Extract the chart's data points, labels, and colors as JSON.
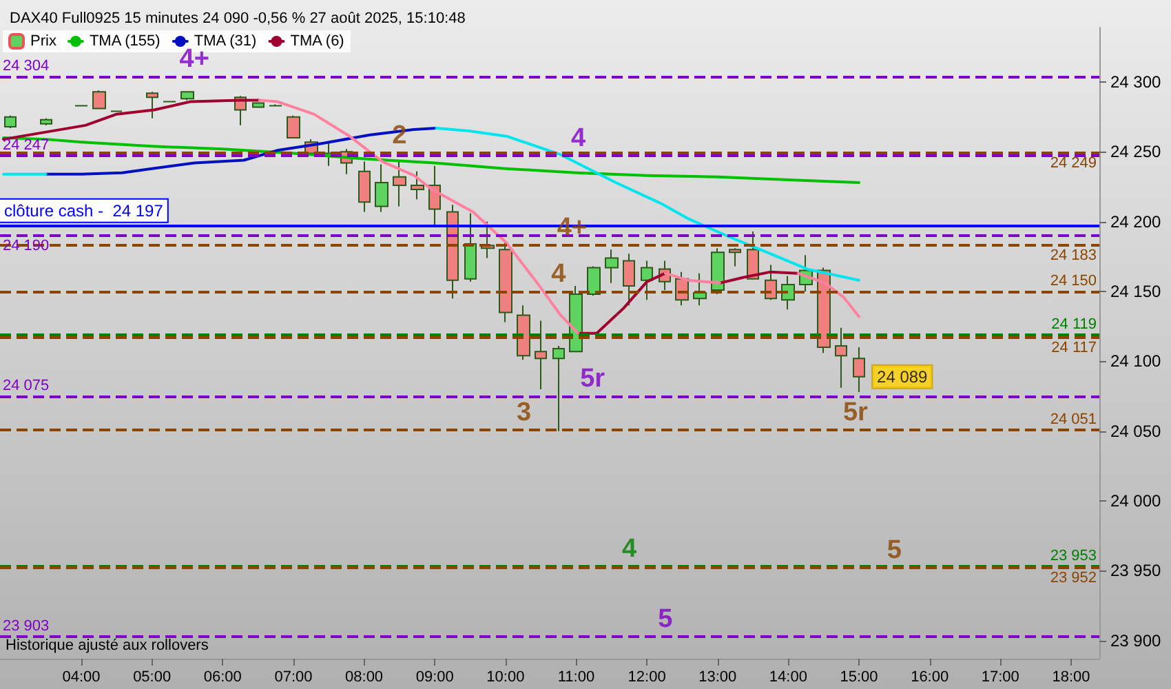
{
  "chart_data": {
    "type": "candlestick",
    "title": "DAX40 Full0925 15 minutes 24 090 -0,56 % 27 août 2025, 15:10:48",
    "xlim": [
      2.85,
      18.4
    ],
    "xticks": [
      {
        "value": 4,
        "label": "04:00"
      },
      {
        "value": 5,
        "label": "05:00"
      },
      {
        "value": 6,
        "label": "06:00"
      },
      {
        "value": 7,
        "label": "07:00"
      },
      {
        "value": 8,
        "label": "08:00"
      },
      {
        "value": 9,
        "label": "09:00"
      },
      {
        "value": 10,
        "label": "10:00"
      },
      {
        "value": 11,
        "label": "11:00"
      },
      {
        "value": 12,
        "label": "12:00"
      },
      {
        "value": 13,
        "label": "13:00"
      },
      {
        "value": 14,
        "label": "14:00"
      },
      {
        "value": 15,
        "label": "15:00"
      },
      {
        "value": 16,
        "label": "16:00"
      },
      {
        "value": 17,
        "label": "17:00"
      },
      {
        "value": 18,
        "label": "18:00"
      }
    ],
    "ylim": [
      23887,
      24339
    ],
    "yticks": [
      {
        "value": 23900,
        "label": "23 900"
      },
      {
        "value": 23950,
        "label": "23 950"
      },
      {
        "value": 24000,
        "label": "24 000"
      },
      {
        "value": 24050,
        "label": "24 050"
      },
      {
        "value": 24100,
        "label": "24 100"
      },
      {
        "value": 24150,
        "label": "24 150"
      },
      {
        "value": 24200,
        "label": "24 200"
      },
      {
        "value": 24250,
        "label": "24 250"
      },
      {
        "value": 24300,
        "label": "24 300"
      }
    ],
    "legend": "top left",
    "marker": "none",
    "series": [
      {
        "name": "Prix",
        "color": "#2d5a1b",
        "x": [
          3,
          3.5,
          4,
          4.25,
          4.5,
          5,
          5.25,
          5.5,
          6.25,
          6.5,
          6.75,
          7,
          7.25,
          7.5,
          7.75,
          8,
          8.25,
          8.5,
          8.75,
          9,
          9.25,
          9.5,
          9.75,
          10,
          10.25,
          10.5,
          10.75,
          11,
          11.25,
          11.5,
          11.75,
          12,
          12.25,
          12.5,
          12.75,
          13,
          13.25,
          13.5,
          13.75,
          14,
          14.25,
          14.5,
          14.75,
          15
        ],
        "ohlc": [
          [
            24268,
            24276,
            24267,
            24275
          ],
          [
            24270,
            24274,
            24269,
            24273
          ],
          [
            24283,
            24283,
            24283,
            24283
          ],
          [
            24293,
            24294,
            24281,
            24281
          ],
          [
            24279,
            24279,
            24279,
            24279
          ],
          [
            24292,
            24293,
            24274,
            24289
          ],
          [
            24286,
            24286,
            24286,
            24286
          ],
          [
            24288,
            24293,
            24287,
            24293
          ],
          [
            24289,
            24290,
            24269,
            24280
          ],
          [
            24282,
            24285,
            24282,
            24285
          ],
          [
            24283,
            24284,
            24283,
            24283
          ],
          [
            24275,
            24276,
            24260,
            24260
          ],
          [
            24257,
            24259,
            24249,
            24249
          ],
          [
            24247,
            24257,
            24240,
            24249
          ],
          [
            24250,
            24252,
            24234,
            24242
          ],
          [
            24236,
            24243,
            24207,
            24214
          ],
          [
            24211,
            24241,
            24207,
            24228
          ],
          [
            24232,
            24243,
            24211,
            24226
          ],
          [
            24226,
            24236,
            24216,
            24223
          ],
          [
            24226,
            24240,
            24197,
            24209
          ],
          [
            24207,
            24212,
            24145,
            24158
          ],
          [
            24159,
            24206,
            24157,
            24184
          ],
          [
            24183,
            24200,
            24174,
            24181
          ],
          [
            24180,
            24186,
            24128,
            24135
          ],
          [
            24133,
            24140,
            24101,
            24104
          ],
          [
            24107,
            24129,
            24080,
            24102
          ],
          [
            24102,
            24111,
            24050,
            24109
          ],
          [
            24107,
            24154,
            24107,
            24148
          ],
          [
            24148,
            24168,
            24147,
            24167
          ],
          [
            24167,
            24180,
            24156,
            24174
          ],
          [
            24172,
            24177,
            24140,
            24154
          ],
          [
            24158,
            24172,
            24144,
            24167
          ],
          [
            24166,
            24172,
            24151,
            24157
          ],
          [
            24159,
            24164,
            24140,
            24144
          ],
          [
            24145,
            24163,
            24140,
            24149
          ],
          [
            24151,
            24181,
            24148,
            24178
          ],
          [
            24180,
            24181,
            24168,
            24178
          ],
          [
            24180,
            24193,
            24159,
            24159
          ],
          [
            24158,
            24169,
            24144,
            24145
          ],
          [
            24144,
            24161,
            24137,
            24155
          ],
          [
            24155,
            24176,
            24150,
            24165
          ],
          [
            24165,
            24167,
            24106,
            24110
          ],
          [
            24111,
            24124,
            24081,
            24104
          ],
          [
            24102,
            24110,
            24078,
            24089
          ]
        ],
        "colors": [
          "#5fd35f",
          "#5fd35f",
          "#2d5a1b",
          "#f08080",
          "#2d5a1b",
          "#f08080",
          "#2d5a1b",
          "#5fd35f",
          "#f08080",
          "#5fd35f",
          "#2d5a1b",
          "#f08080",
          "#f08080",
          "#5fd35f",
          "#f08080",
          "#f08080",
          "#5fd35f",
          "#f08080",
          "#f08080",
          "#f08080",
          "#f08080",
          "#5fd35f",
          "#f08080",
          "#f08080",
          "#f08080",
          "#f08080",
          "#5fd35f",
          "#5fd35f",
          "#5fd35f",
          "#5fd35f",
          "#f08080",
          "#5fd35f",
          "#f08080",
          "#f08080",
          "#5fd35f",
          "#5fd35f",
          "#f08080",
          "#f08080",
          "#f08080",
          "#5fd35f",
          "#5fd35f",
          "#f08080",
          "#f08080",
          "#f08080"
        ]
      },
      {
        "type": "line",
        "name": "TMA (155)",
        "color": "#00c000",
        "x": [
          2.9,
          3.5,
          4,
          5,
          6,
          7,
          8,
          9,
          10,
          11,
          12,
          13,
          14,
          15
        ],
        "values": [
          24260,
          24259,
          24257,
          24254,
          24252,
          24249,
          24245,
          24242,
          24238,
          24235,
          24233,
          24232,
          24230,
          24228
        ]
      },
      {
        "type": "line",
        "name": "TMA (31)",
        "color": "#0010c0",
        "x": [
          3.5,
          4,
          4.58,
          5,
          5.6,
          6.3,
          6.77,
          7.4,
          8.07,
          8.7,
          9.02
        ],
        "values": [
          24234,
          24234,
          24235,
          24238,
          24242,
          24244,
          24251,
          24256,
          24262,
          24266,
          24267
        ]
      },
      {
        "type": "line",
        "color": "#00e5ee",
        "x": [
          2.9,
          3.5,
          6,
          9.02,
          9.48,
          10.03,
          10.78,
          11.56,
          12.2,
          12.59,
          13.17,
          13.75,
          14.27,
          15
        ],
        "values": [
          24234,
          24234,
          null,
          24267,
          24265,
          24261,
          24248,
          24228,
          24213,
          24202,
          24189,
          24177,
          24166,
          24158
        ]
      },
      {
        "type": "line",
        "name": "TMA (6)",
        "color": "#a00030",
        "x": [
          2.9,
          4.06,
          4.5,
          5.03,
          5.55,
          6.25,
          6.52,
          8,
          11.03,
          11.29,
          11.67,
          12,
          12.26,
          12.59,
          13.03,
          13.36,
          13.75,
          14.14
        ],
        "values": [
          24259,
          24269,
          24277,
          24280,
          24286,
          24287,
          24287,
          null,
          24120,
          24120,
          24138,
          24157,
          24163,
          null,
          24156,
          24160,
          24164,
          24163
        ]
      },
      {
        "type": "line",
        "color": "#ff80a0",
        "x": [
          6.52,
          6.77,
          7.29,
          7.8,
          8.26,
          8.71,
          8.96,
          9.54,
          10.01,
          10.45,
          10.78,
          11.03,
          11.6,
          12.26,
          12.59,
          13.03,
          13.5,
          14.14,
          14.52,
          14.78,
          15
        ],
        "values": [
          24287,
          24286,
          24277,
          24261,
          24243,
          24233,
          24223,
          24207,
          24185,
          24156,
          24133,
          24120,
          null,
          24163,
          24158,
          24156,
          null,
          24163,
          24156,
          24146,
          24132
        ]
      }
    ],
    "ref_lines": [
      {
        "axis": "y",
        "value": 24197,
        "label": "clôture cash -  24 197",
        "color": "#0000ff",
        "line_style": "solid"
      },
      {
        "axis": "y",
        "value": 24304,
        "label": "24 304",
        "color": "#8000c8",
        "line_style": "dashed"
      },
      {
        "axis": "y",
        "value": 24247,
        "label": "24 247",
        "color": "#8000c8",
        "line_style": "dashed"
      },
      {
        "axis": "y",
        "value": 24190,
        "label": "24 190",
        "color": "#8000c8",
        "line_style": "dashed"
      },
      {
        "axis": "y",
        "value": 24075,
        "label": "24 075",
        "color": "#8000c8",
        "line_style": "dashed"
      },
      {
        "axis": "y",
        "value": 23903,
        "label": "23 903",
        "color": "#8000c8",
        "line_style": "dashed"
      },
      {
        "axis": "y",
        "value": 24249,
        "label": "24 249",
        "color": "#8b4500",
        "line_style": "dashed"
      },
      {
        "axis": "y",
        "value": 24183,
        "label": "24 183",
        "color": "#8b4500",
        "line_style": "dashed"
      },
      {
        "axis": "y",
        "value": 24150,
        "label": "24 150",
        "color": "#8b4500",
        "line_style": "dashed"
      },
      {
        "axis": "y",
        "value": 24119,
        "label": "24 119",
        "color": "#008000",
        "line_style": "dashed"
      },
      {
        "axis": "y",
        "value": 24117,
        "label": "24 117",
        "color": "#8b4500",
        "line_style": "dashed"
      },
      {
        "axis": "y",
        "value": 24051,
        "label": "24 051",
        "color": "#8b4500",
        "line_style": "dashed"
      },
      {
        "axis": "y",
        "value": 23953,
        "label": "23 953",
        "color": "#008000",
        "line_style": "dashed"
      },
      {
        "axis": "y",
        "value": 23952,
        "label": "23 952",
        "color": "#8b4500",
        "line_style": "dashed"
      }
    ],
    "annotations": [
      {
        "text": "4+",
        "x": 5.6,
        "y": 24304
      },
      {
        "text": "2",
        "x": 8.5,
        "y": 24249
      },
      {
        "text": "4",
        "x": 11.03,
        "y": 24247
      },
      {
        "text": "4+",
        "x": 10.94,
        "y": 24183
      },
      {
        "text": "4",
        "x": 10.75,
        "y": 24150
      },
      {
        "text": "5r",
        "x": 11.23,
        "y": 24075
      },
      {
        "text": "3",
        "x": 10.26,
        "y": 24051
      },
      {
        "text": "5r",
        "x": 14.95,
        "y": 24051
      },
      {
        "text": "4",
        "x": 11.75,
        "y": 23953
      },
      {
        "text": "5",
        "x": 15.5,
        "y": 23952
      },
      {
        "text": "5",
        "x": 12.26,
        "y": 23903
      },
      {
        "text": "24 089",
        "x": 15,
        "y": 24089
      },
      "Historique ajusté aux rollovers"
    ]
  }
}
